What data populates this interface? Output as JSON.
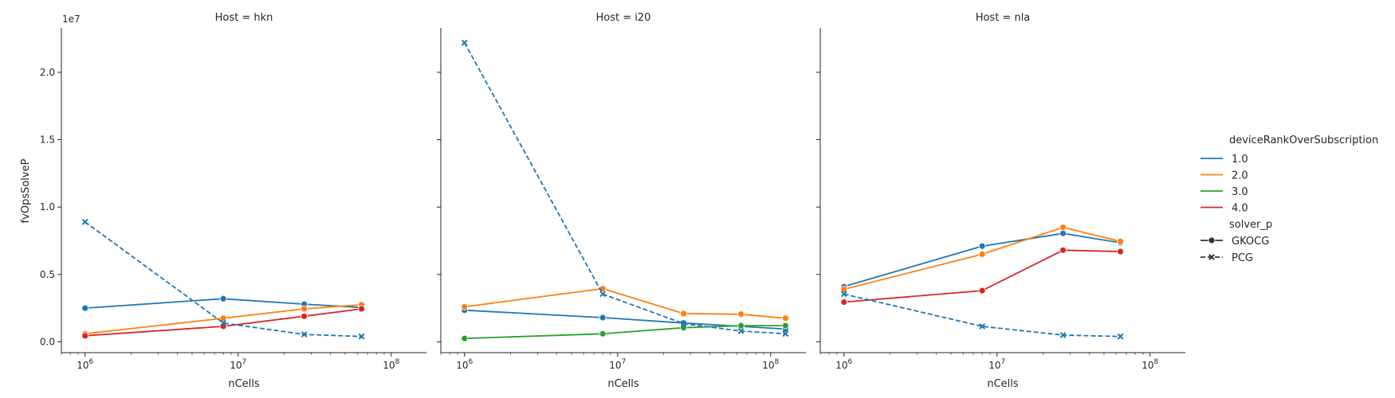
{
  "figure": {
    "ylabel": "fvOpsSolveP",
    "xlabel": "nCells",
    "offset_text": "1e7",
    "panel_titles": [
      "Host = hkn",
      "Host = i20",
      "Host = nla"
    ],
    "legend_hue_title": "deviceRankOverSubscription",
    "legend_style_title": "solver_p"
  },
  "colors": {
    "1.0": "#1f77b4",
    "2.0": "#ff7f0e",
    "3.0": "#2ca02c",
    "4.0": "#d62728",
    "axis": "#262626"
  },
  "chart_data": {
    "type": "line",
    "x_scale": "log",
    "xlim": [
      700000,
      170000000
    ],
    "ylim": [
      -800000,
      23300000
    ],
    "y_ticks": [
      0,
      5000000,
      10000000,
      15000000,
      20000000
    ],
    "y_tick_labels": [
      "0.0",
      "0.5",
      "1.0",
      "1.5",
      "2.0"
    ],
    "x_ticks": [
      1000000,
      10000000,
      100000000
    ],
    "x_tick_labels": [
      "10^6",
      "10^7",
      "10^8"
    ],
    "grid": false,
    "legend_position": "right",
    "hue_legend": [
      {
        "label": "1.0",
        "color": "#1f77b4"
      },
      {
        "label": "2.0",
        "color": "#ff7f0e"
      },
      {
        "label": "3.0",
        "color": "#2ca02c"
      },
      {
        "label": "4.0",
        "color": "#d62728"
      }
    ],
    "style_legend": [
      {
        "label": "GKOCG",
        "marker": "circle",
        "dash": "solid"
      },
      {
        "label": "PCG",
        "marker": "x",
        "dash": "dashed"
      }
    ],
    "panels": [
      {
        "title": "Host = hkn",
        "series": [
          {
            "hue": "1.0",
            "solver": "GKOCG",
            "x": [
              1000000,
              8000000,
              27000000,
              64000000
            ],
            "y": [
              2500000,
              3200000,
              2800000,
              2550000
            ]
          },
          {
            "hue": "2.0",
            "solver": "GKOCG",
            "x": [
              1000000,
              8000000,
              27000000,
              64000000
            ],
            "y": [
              600000,
              1750000,
              2450000,
              2750000
            ]
          },
          {
            "hue": "4.0",
            "solver": "GKOCG",
            "x": [
              1000000,
              8000000,
              27000000,
              64000000
            ],
            "y": [
              450000,
              1150000,
              1900000,
              2450000
            ]
          },
          {
            "hue": "1.0",
            "solver": "PCG",
            "x": [
              1000000,
              8000000,
              27000000,
              64000000
            ],
            "y": [
              8900000,
              1400000,
              550000,
              400000
            ]
          }
        ]
      },
      {
        "title": "Host = i20",
        "series": [
          {
            "hue": "1.0",
            "solver": "GKOCG",
            "x": [
              1000000,
              8000000,
              27000000,
              64000000,
              125000000
            ],
            "y": [
              2350000,
              1800000,
              1400000,
              1150000,
              950000
            ]
          },
          {
            "hue": "2.0",
            "solver": "GKOCG",
            "x": [
              1000000,
              8000000,
              27000000,
              64000000,
              125000000
            ],
            "y": [
              2600000,
              3950000,
              2100000,
              2050000,
              1750000
            ]
          },
          {
            "hue": "3.0",
            "solver": "GKOCG",
            "x": [
              1000000,
              8000000,
              27000000,
              64000000,
              125000000
            ],
            "y": [
              250000,
              600000,
              1050000,
              1200000,
              1200000
            ]
          },
          {
            "hue": "1.0",
            "solver": "PCG",
            "x": [
              1000000,
              8000000,
              27000000,
              64000000,
              125000000
            ],
            "y": [
              22200000,
              3550000,
              1350000,
              800000,
              600000
            ]
          }
        ]
      },
      {
        "title": "Host = nla",
        "series": [
          {
            "hue": "1.0",
            "solver": "GKOCG",
            "x": [
              1000000,
              8000000,
              27000000,
              64000000
            ],
            "y": [
              4100000,
              7100000,
              8050000,
              7350000
            ]
          },
          {
            "hue": "2.0",
            "solver": "GKOCG",
            "x": [
              1000000,
              8000000,
              27000000,
              64000000
            ],
            "y": [
              3900000,
              6500000,
              8500000,
              7450000
            ]
          },
          {
            "hue": "4.0",
            "solver": "GKOCG",
            "x": [
              1000000,
              8000000,
              27000000,
              64000000
            ],
            "y": [
              2950000,
              3800000,
              6800000,
              6700000
            ]
          },
          {
            "hue": "1.0",
            "solver": "PCG",
            "x": [
              1000000,
              8000000,
              27000000,
              64000000
            ],
            "y": [
              3550000,
              1150000,
              500000,
              400000
            ]
          }
        ]
      }
    ]
  }
}
